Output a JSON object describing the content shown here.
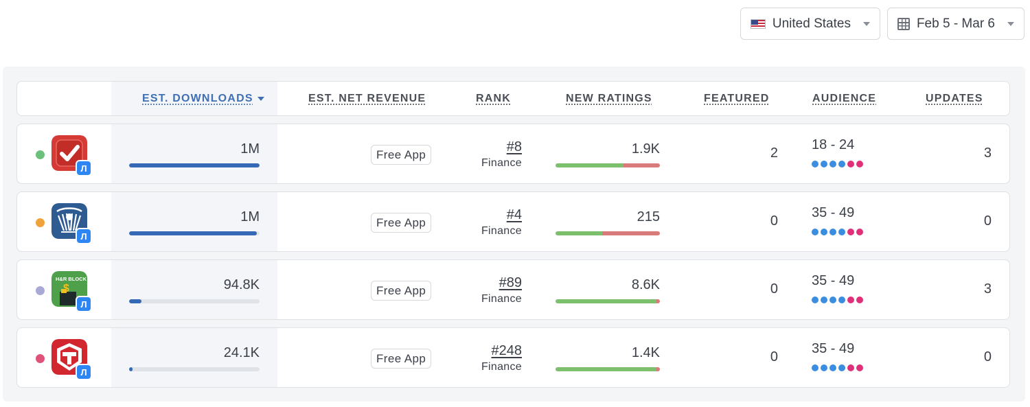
{
  "filters": {
    "country": "United States",
    "date_range": "Feb 5 - Mar 6"
  },
  "columns": {
    "downloads": "EST. DOWNLOADS",
    "revenue": "EST. NET REVENUE",
    "rank": "RANK",
    "ratings": "NEW RATINGS",
    "featured": "FEATURED",
    "audience": "AUDIENCE",
    "updates": "UPDATES"
  },
  "colors": {
    "accent": "#3f6fb5",
    "download_bar": "#3569b6",
    "rating_positive": "#7cc06e",
    "rating_negative": "#d97b7b",
    "audience_blue": "#3b8de0",
    "audience_pink": "#e0307a"
  },
  "rows": [
    {
      "status_color": "#6cc07a",
      "icon": "todo-checkmark-icon",
      "downloads": "1M",
      "downloads_fraction": 1.0,
      "revenue": "Free App",
      "rank": "#8",
      "category": "Finance",
      "new_ratings": "1.9K",
      "ratings_positive_fraction": 0.65,
      "featured": "2",
      "audience": "18 - 24",
      "updates": "3"
    },
    {
      "status_color": "#f0a23b",
      "icon": "irs-eagle-icon",
      "downloads": "1M",
      "downloads_fraction": 0.98,
      "revenue": "Free App",
      "rank": "#4",
      "category": "Finance",
      "new_ratings": "215",
      "ratings_positive_fraction": 0.45,
      "featured": "0",
      "audience": "35 - 49",
      "updates": "0"
    },
    {
      "status_color": "#a9a9d8",
      "icon": "hr-block-icon",
      "downloads": "94.8K",
      "downloads_fraction": 0.095,
      "revenue": "Free App",
      "rank": "#89",
      "category": "Finance",
      "new_ratings": "8.6K",
      "ratings_positive_fraction": 0.97,
      "featured": "0",
      "audience": "35 - 49",
      "updates": "3"
    },
    {
      "status_color": "#e0527a",
      "icon": "turbotax-icon",
      "downloads": "24.1K",
      "downloads_fraction": 0.024,
      "revenue": "Free App",
      "rank": "#248",
      "category": "Finance",
      "new_ratings": "1.4K",
      "ratings_positive_fraction": 0.97,
      "featured": "0",
      "audience": "35 - 49",
      "updates": "0"
    }
  ]
}
